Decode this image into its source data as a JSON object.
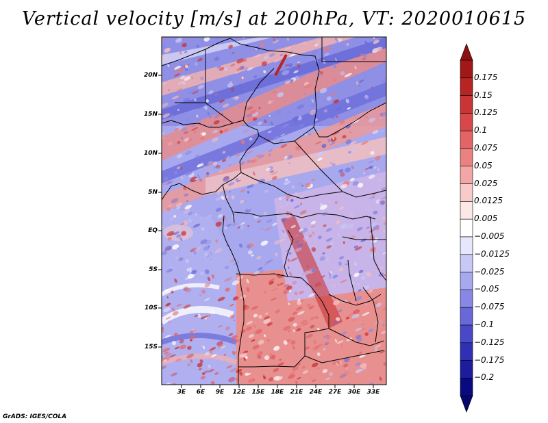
{
  "title": "Vertical velocity [m/s] at 200hPa, VT: 2020010615",
  "footer": "GrADS: IGES/COLA",
  "map": {
    "lat_labels": [
      "20N",
      "15N",
      "10N",
      "5N",
      "EQ",
      "5S",
      "10S",
      "15S"
    ],
    "lon_labels": [
      "3E",
      "6E",
      "9E",
      "12E",
      "15E",
      "18E",
      "21E",
      "24E",
      "27E",
      "30E",
      "33E"
    ]
  },
  "colorbar": {
    "labels": [
      "0.175",
      "0.15",
      "0.125",
      "0.1",
      "0.075",
      "0.05",
      "0.025",
      "0.0125",
      "0.005",
      "−0.005",
      "−0.0125",
      "−0.025",
      "−0.05",
      "−0.075",
      "−0.1",
      "−0.125",
      "−0.175",
      "−0.2"
    ],
    "colors": [
      "#a01818",
      "#b82424",
      "#c93434",
      "#d84848",
      "#e26464",
      "#ea8282",
      "#f2a6a6",
      "#f8caca",
      "#fde8e8",
      "#ffffff",
      "#e6e6fc",
      "#c8c8f6",
      "#a8a8ee",
      "#8888e4",
      "#6868d8",
      "#4848c8",
      "#3030b4",
      "#1c1c9c",
      "#0a0a80"
    ],
    "top_triangle_color": "#8c1010",
    "bottom_triangle_color": "#06066c"
  }
}
